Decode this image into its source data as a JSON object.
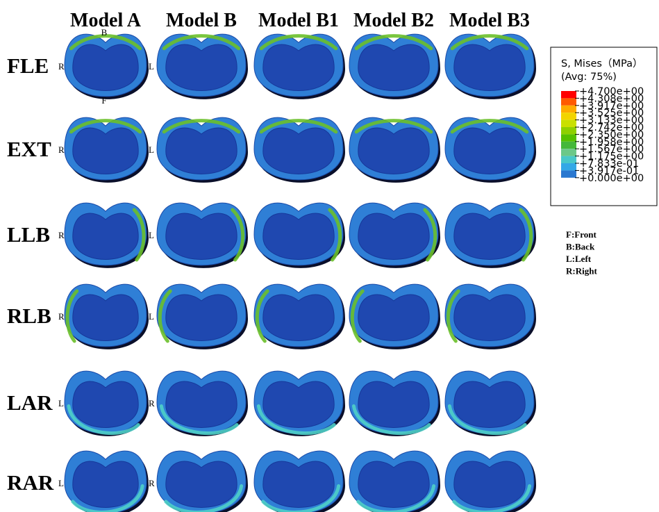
{
  "columns": [
    "Model A",
    "Model B",
    "Model B1",
    "Model B2",
    "Model B3"
  ],
  "rows": [
    {
      "label": "FLE",
      "orientation": {
        "top": "B",
        "left": "R",
        "right": "L",
        "bottom": "F"
      }
    },
    {
      "label": "EXT",
      "orientation": {
        "left": "R",
        "right": "L"
      }
    },
    {
      "label": "LLB",
      "orientation": {
        "left": "R",
        "right": "L"
      }
    },
    {
      "label": "RLB",
      "orientation": {
        "left": "R",
        "right": "L"
      }
    },
    {
      "label": "LAR",
      "orientation": {
        "left": "L",
        "right": "R"
      }
    },
    {
      "label": "RAR",
      "orientation": {
        "left": "L",
        "right": "R"
      }
    }
  ],
  "legend": {
    "title": "S, Mises（MPa）",
    "subtitle": "(Avg: 75%)",
    "labels": [
      "+4.700e+00",
      "+4.308e+00",
      "+3.917e+00",
      "+3.525e+00",
      "+3.133e+00",
      "+2.742e+00",
      "+2.350e+00",
      "+1.958e+00",
      "+1.567e+00",
      "+1.175e+00",
      "+7.833e-01",
      "+3.917e-01",
      "+0.000e+00"
    ]
  },
  "key": [
    "F:Front",
    "B:Back",
    "L:Left",
    "R:Right"
  ]
}
